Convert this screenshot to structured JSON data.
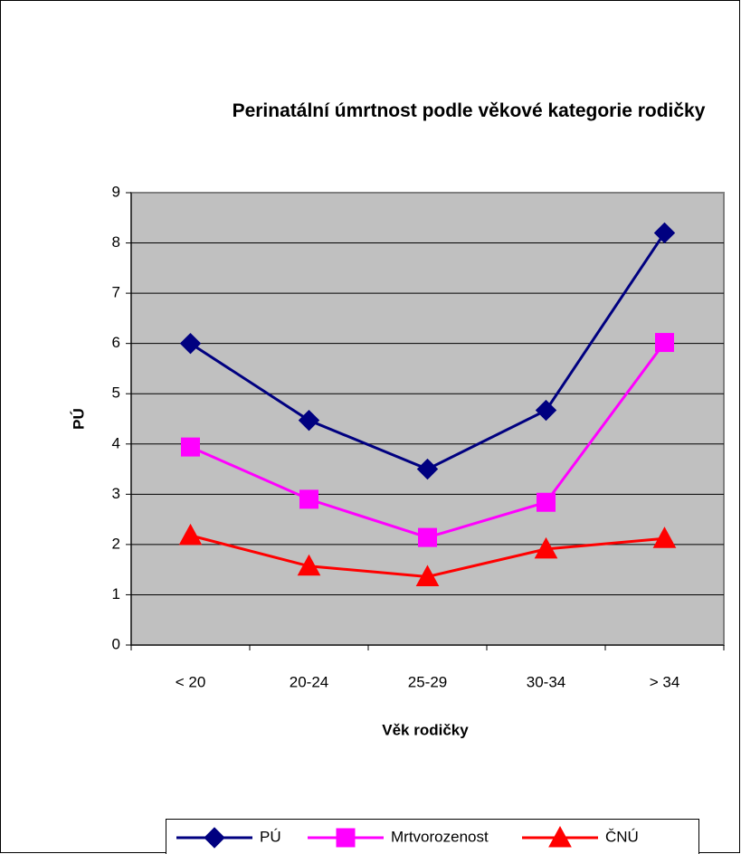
{
  "chart_data": {
    "type": "line",
    "title": "Perinatální úmrtnost podle věkové kategorie rodičky",
    "xlabel": "Věk rodičky",
    "ylabel": "PÚ",
    "categories": [
      "< 20",
      "20-24",
      "25-29",
      "30-34",
      "> 34"
    ],
    "series": [
      {
        "name": "PÚ",
        "color": "#000080",
        "marker": "diamond",
        "values": [
          6.0,
          4.47,
          3.5,
          4.67,
          8.2
        ]
      },
      {
        "name": "Mrtvorozenost",
        "color": "#FF00FF",
        "marker": "square",
        "values": [
          3.94,
          2.9,
          2.14,
          2.84,
          6.02
        ]
      },
      {
        "name": "ČNÚ",
        "color": "#FF0000",
        "marker": "triangle",
        "values": [
          2.18,
          1.57,
          1.36,
          1.91,
          2.12
        ]
      }
    ],
    "ylim": [
      0,
      9
    ],
    "yticks": [
      0,
      1,
      2,
      3,
      4,
      5,
      6,
      7,
      8,
      9
    ],
    "grid": true,
    "legend": "bottom"
  }
}
